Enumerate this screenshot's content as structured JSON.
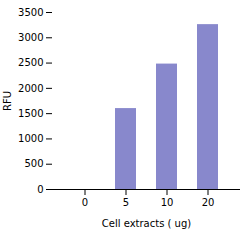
{
  "chart_data": {
    "type": "bar",
    "categories": [
      "0",
      "5",
      "10",
      "20"
    ],
    "values": [
      0,
      1600,
      2480,
      3260
    ],
    "color": "#8888cc",
    "xlabel": "Cell extracts ( ug)",
    "ylabel": "RFU",
    "ylim": [
      0,
      3500
    ],
    "yticks": [
      0,
      500,
      1000,
      1500,
      2000,
      2500,
      3000,
      3500
    ],
    "grid": false
  }
}
